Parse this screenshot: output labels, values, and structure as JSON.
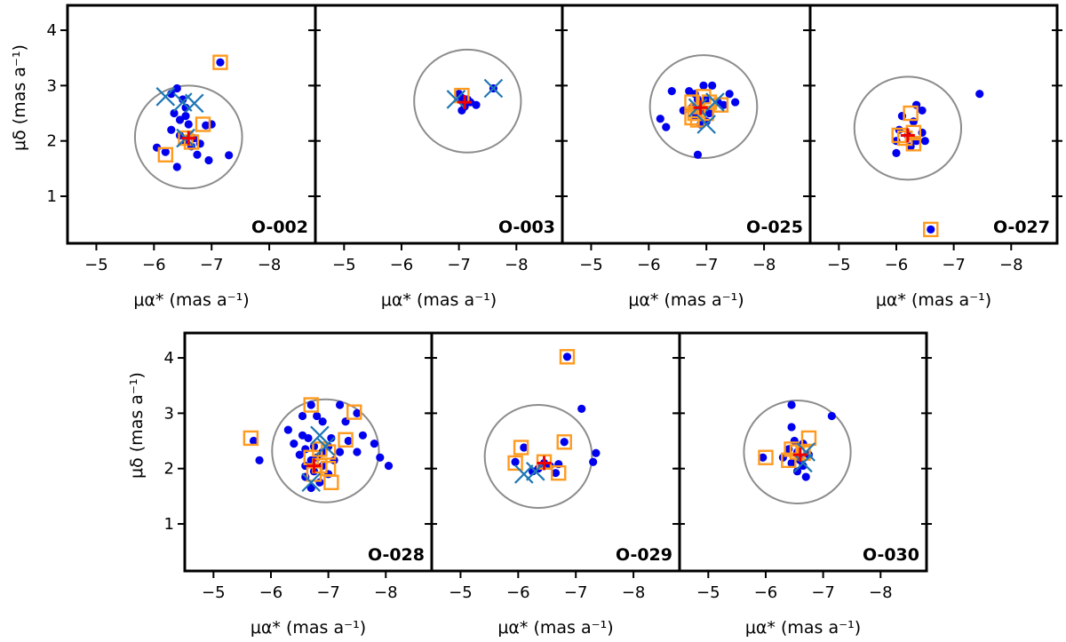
{
  "figure": {
    "xlabel": "μα* (mas a⁻¹)",
    "ylabel": "μδ (mas a⁻¹)",
    "xticks": [
      -5,
      -6,
      -7,
      -8
    ],
    "yticks": [
      1,
      2,
      3,
      4
    ],
    "colors": {
      "star": "#0000ee",
      "square": "#ff9a1f",
      "cross": "#1f77b4",
      "center": "#ee0000",
      "circle": "#8c8c8c"
    }
  },
  "chart_data": [
    {
      "type": "scatter",
      "name": "O-002",
      "xlim": [
        -4.5,
        -8.8
      ],
      "ylim": [
        0.15,
        4.45
      ],
      "circle": {
        "cx": -6.6,
        "cy": 2.07,
        "r": 0.93
      },
      "center": [
        -6.6,
        2.05
      ],
      "stars": [
        [
          -7.15,
          3.42
        ],
        [
          -6.4,
          2.95
        ],
        [
          -6.3,
          2.85
        ],
        [
          -6.5,
          2.75
        ],
        [
          -6.35,
          2.5
        ],
        [
          -6.55,
          2.45
        ],
        [
          -6.45,
          2.38
        ],
        [
          -6.6,
          2.3
        ],
        [
          -6.9,
          2.28
        ],
        [
          -7.0,
          2.3
        ],
        [
          -6.3,
          2.2
        ],
        [
          -6.45,
          2.1
        ],
        [
          -6.7,
          2.05
        ],
        [
          -6.55,
          1.98
        ],
        [
          -6.8,
          1.95
        ],
        [
          -6.65,
          1.9
        ],
        [
          -6.05,
          1.88
        ],
        [
          -6.2,
          1.8
        ],
        [
          -6.75,
          1.75
        ],
        [
          -7.3,
          1.74
        ],
        [
          -6.95,
          1.65
        ],
        [
          -6.4,
          1.53
        ],
        [
          -6.55,
          2.6
        ]
      ],
      "squares": [
        [
          -7.15,
          3.42
        ],
        [
          -6.85,
          2.3
        ],
        [
          -6.55,
          2.05
        ],
        [
          -6.65,
          1.98
        ],
        [
          -6.2,
          1.75
        ]
      ],
      "crosses": [
        [
          -6.2,
          2.8
        ],
        [
          -6.5,
          2.7
        ],
        [
          -6.7,
          2.68
        ],
        [
          -6.55,
          2.05
        ]
      ]
    },
    {
      "type": "scatter",
      "name": "O-003",
      "xlim": [
        -4.5,
        -8.8
      ],
      "ylim": [
        0.15,
        4.45
      ],
      "circle": {
        "cx": -7.15,
        "cy": 2.72,
        "r": 0.93
      },
      "center": [
        -7.1,
        2.7
      ],
      "stars": [
        [
          -7.6,
          2.95
        ],
        [
          -7.0,
          2.85
        ],
        [
          -7.05,
          2.78
        ],
        [
          -7.15,
          2.75
        ],
        [
          -7.2,
          2.7
        ],
        [
          -7.3,
          2.65
        ],
        [
          -7.1,
          2.62
        ],
        [
          -7.05,
          2.55
        ]
      ],
      "squares": [
        [
          -7.05,
          2.82
        ]
      ],
      "crosses": [
        [
          -7.6,
          2.95
        ],
        [
          -6.95,
          2.75
        ]
      ]
    },
    {
      "type": "scatter",
      "name": "O-025",
      "xlim": [
        -4.5,
        -8.8
      ],
      "ylim": [
        0.15,
        4.45
      ],
      "circle": {
        "cx": -6.95,
        "cy": 2.62,
        "r": 0.93
      },
      "center": [
        -6.9,
        2.6
      ],
      "stars": [
        [
          -6.95,
          3.0
        ],
        [
          -7.1,
          3.0
        ],
        [
          -6.7,
          2.9
        ],
        [
          -6.4,
          2.9
        ],
        [
          -7.4,
          2.85
        ],
        [
          -6.8,
          2.85
        ],
        [
          -6.85,
          2.75
        ],
        [
          -7.0,
          2.75
        ],
        [
          -7.2,
          2.7
        ],
        [
          -7.3,
          2.65
        ],
        [
          -6.75,
          2.6
        ],
        [
          -6.9,
          2.55
        ],
        [
          -7.05,
          2.5
        ],
        [
          -6.8,
          2.45
        ],
        [
          -6.2,
          2.4
        ],
        [
          -7.0,
          2.35
        ],
        [
          -6.9,
          2.3
        ],
        [
          -6.3,
          2.25
        ],
        [
          -6.85,
          1.75
        ],
        [
          -7.5,
          2.7
        ],
        [
          -6.6,
          2.55
        ]
      ],
      "squares": [
        [
          -6.95,
          2.8
        ],
        [
          -6.75,
          2.7
        ],
        [
          -7.05,
          2.7
        ],
        [
          -7.25,
          2.65
        ],
        [
          -6.85,
          2.55
        ],
        [
          -6.8,
          2.5
        ],
        [
          -7.0,
          2.5
        ],
        [
          -6.75,
          2.42
        ],
        [
          -6.85,
          2.38
        ]
      ],
      "crosses": [
        [
          -6.85,
          2.6
        ],
        [
          -7.0,
          2.3
        ],
        [
          -7.15,
          2.7
        ]
      ]
    },
    {
      "type": "scatter",
      "name": "O-027",
      "xlim": [
        -4.5,
        -8.8
      ],
      "ylim": [
        0.15,
        4.45
      ],
      "circle": {
        "cx": -6.2,
        "cy": 2.23,
        "r": 0.93
      },
      "center": [
        -6.2,
        2.1
      ],
      "stars": [
        [
          -7.45,
          2.85
        ],
        [
          -6.35,
          2.65
        ],
        [
          -6.45,
          2.55
        ],
        [
          -6.1,
          2.45
        ],
        [
          -6.3,
          2.35
        ],
        [
          -6.05,
          2.2
        ],
        [
          -6.45,
          2.15
        ],
        [
          -6.2,
          2.1
        ],
        [
          -6.0,
          2.0
        ],
        [
          -6.35,
          2.0
        ],
        [
          -6.5,
          2.0
        ],
        [
          -6.25,
          1.9
        ],
        [
          -6.0,
          1.78
        ],
        [
          -6.6,
          0.4
        ]
      ],
      "squares": [
        [
          -6.25,
          2.5
        ],
        [
          -6.05,
          2.1
        ],
        [
          -6.3,
          2.15
        ],
        [
          -6.15,
          2.05
        ],
        [
          -6.3,
          1.95
        ],
        [
          -6.6,
          0.4
        ]
      ],
      "crosses": []
    },
    {
      "type": "scatter",
      "name": "O-028",
      "xlim": [
        -4.5,
        -8.8
      ],
      "ylim": [
        0.15,
        4.45
      ],
      "circle": {
        "cx": -6.95,
        "cy": 2.32,
        "r": 0.93
      },
      "center": [
        -6.75,
        2.05
      ],
      "stars": [
        [
          -6.7,
          3.15
        ],
        [
          -7.2,
          3.15
        ],
        [
          -6.8,
          2.95
        ],
        [
          -7.5,
          3.0
        ],
        [
          -7.3,
          2.85
        ],
        [
          -6.9,
          2.85
        ],
        [
          -6.3,
          2.7
        ],
        [
          -6.55,
          2.6
        ],
        [
          -7.6,
          2.6
        ],
        [
          -6.65,
          2.55
        ],
        [
          -7.05,
          2.55
        ],
        [
          -7.35,
          2.5
        ],
        [
          -7.8,
          2.45
        ],
        [
          -6.4,
          2.45
        ],
        [
          -6.75,
          2.4
        ],
        [
          -7.0,
          2.4
        ],
        [
          -6.6,
          2.35
        ],
        [
          -6.9,
          2.3
        ],
        [
          -7.2,
          2.3
        ],
        [
          -7.5,
          2.3
        ],
        [
          -6.5,
          2.25
        ],
        [
          -6.8,
          2.2
        ],
        [
          -7.9,
          2.2
        ],
        [
          -5.8,
          2.15
        ],
        [
          -6.7,
          2.15
        ],
        [
          -7.1,
          2.15
        ],
        [
          -6.6,
          2.05
        ],
        [
          -6.9,
          2.05
        ],
        [
          -8.05,
          2.05
        ],
        [
          -6.75,
          1.95
        ],
        [
          -7.0,
          1.9
        ],
        [
          -6.6,
          1.85
        ],
        [
          -6.85,
          1.75
        ],
        [
          -6.7,
          1.65
        ],
        [
          -5.7,
          2.5
        ],
        [
          -6.55,
          2.95
        ]
      ],
      "squares": [
        [
          -6.7,
          3.15
        ],
        [
          -7.45,
          3.02
        ],
        [
          -5.65,
          2.55
        ],
        [
          -7.3,
          2.52
        ],
        [
          -6.85,
          2.35
        ],
        [
          -7.0,
          2.3
        ],
        [
          -6.7,
          2.2
        ],
        [
          -6.85,
          2.05
        ],
        [
          -7.0,
          2.0
        ],
        [
          -6.75,
          1.9
        ],
        [
          -7.05,
          1.75
        ]
      ],
      "crosses": [
        [
          -6.85,
          2.6
        ],
        [
          -6.95,
          2.4
        ],
        [
          -6.7,
          1.75
        ]
      ]
    },
    {
      "type": "scatter",
      "name": "O-029",
      "xlim": [
        -4.5,
        -8.8
      ],
      "ylim": [
        0.15,
        4.45
      ],
      "circle": {
        "cx": -6.35,
        "cy": 2.22,
        "r": 0.93
      },
      "center": [
        -6.45,
        2.1
      ],
      "stars": [
        [
          -6.85,
          4.02
        ],
        [
          -7.1,
          3.08
        ],
        [
          -6.8,
          2.48
        ],
        [
          -7.35,
          2.28
        ],
        [
          -6.1,
          2.38
        ],
        [
          -6.45,
          2.1
        ],
        [
          -6.7,
          2.08
        ],
        [
          -5.95,
          2.12
        ],
        [
          -7.3,
          2.12
        ],
        [
          -6.55,
          2.05
        ],
        [
          -6.25,
          1.95
        ],
        [
          -6.65,
          1.92
        ],
        [
          -6.35,
          2.0
        ]
      ],
      "squares": [
        [
          -6.85,
          4.02
        ],
        [
          -6.8,
          2.48
        ],
        [
          -6.05,
          2.38
        ],
        [
          -6.45,
          2.12
        ],
        [
          -5.95,
          2.1
        ],
        [
          -6.7,
          1.92
        ]
      ],
      "crosses": [
        [
          -6.3,
          1.95
        ],
        [
          -6.1,
          1.9
        ]
      ]
    },
    {
      "type": "scatter",
      "name": "O-030",
      "xlim": [
        -4.5,
        -8.8
      ],
      "ylim": [
        0.15,
        4.45
      ],
      "circle": {
        "cx": -6.55,
        "cy": 2.3,
        "r": 0.93
      },
      "center": [
        -6.6,
        2.25
      ],
      "stars": [
        [
          -6.45,
          3.15
        ],
        [
          -7.15,
          2.95
        ],
        [
          -6.45,
          2.75
        ],
        [
          -6.5,
          2.5
        ],
        [
          -6.65,
          2.45
        ],
        [
          -6.4,
          2.35
        ],
        [
          -6.55,
          2.3
        ],
        [
          -6.75,
          2.25
        ],
        [
          -6.3,
          2.2
        ],
        [
          -6.6,
          2.15
        ],
        [
          -6.45,
          2.1
        ],
        [
          -6.65,
          2.05
        ],
        [
          -6.55,
          1.95
        ],
        [
          -6.7,
          1.85
        ],
        [
          -5.95,
          2.2
        ]
      ],
      "squares": [
        [
          -6.75,
          2.55
        ],
        [
          -6.45,
          2.35
        ],
        [
          -6.55,
          2.3
        ],
        [
          -6.65,
          2.28
        ],
        [
          -6.0,
          2.2
        ],
        [
          -6.4,
          2.15
        ]
      ],
      "crosses": [
        [
          -6.7,
          2.3
        ],
        [
          -6.65,
          2.1
        ]
      ]
    }
  ]
}
